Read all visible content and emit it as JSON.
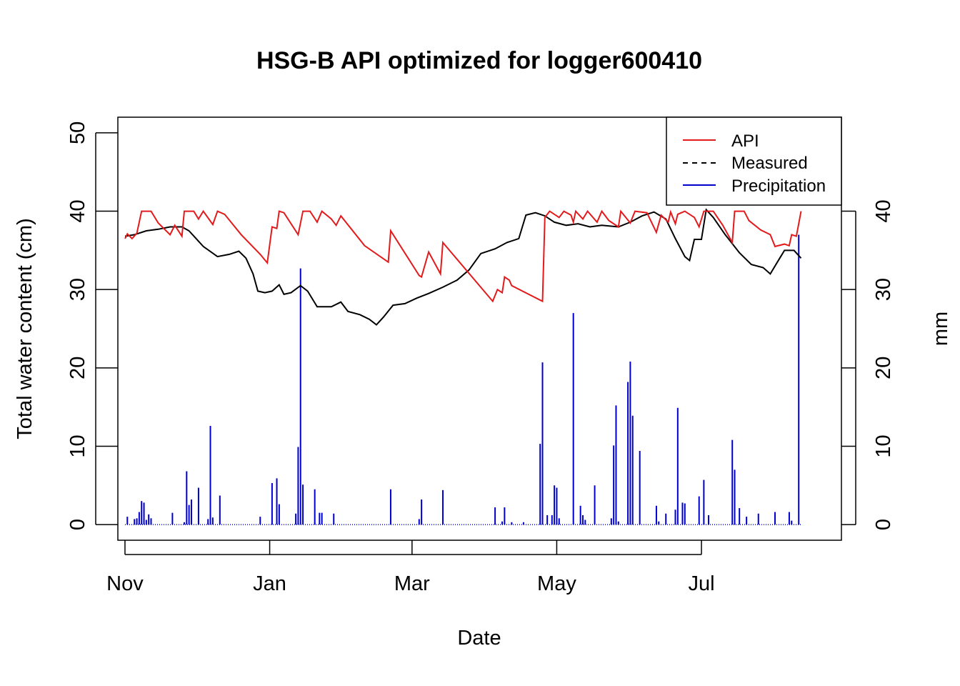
{
  "chart_data": {
    "type": "line",
    "title": "HSG-B API optimized for logger600410",
    "xlabel": "Date",
    "ylabel": "Total water content (cm)",
    "y2label": "mm",
    "x_range": [
      "2015-10-29",
      "2016-08-29"
    ],
    "ylim": [
      -2,
      52
    ],
    "y2lim": [
      -2,
      52
    ],
    "y_ticks": [
      0,
      10,
      20,
      30,
      40,
      50
    ],
    "y2_ticks": [
      0,
      10,
      20,
      30,
      40
    ],
    "x_ticks": [
      {
        "date": "2015-11-01",
        "label": "Nov"
      },
      {
        "date": "2016-01-01",
        "label": "Jan"
      },
      {
        "date": "2016-03-01",
        "label": "Mar"
      },
      {
        "date": "2016-05-01",
        "label": "May"
      },
      {
        "date": "2016-07-01",
        "label": "Jul"
      }
    ],
    "grid": false,
    "legend_position": "top-right",
    "legend": [
      {
        "name": "API",
        "color": "#e31a1c",
        "style": "solid"
      },
      {
        "name": "Measured",
        "color": "#000000",
        "style": "dashed"
      },
      {
        "name": "Precipitation",
        "color": "#0000cc",
        "style": "solid"
      }
    ],
    "series": [
      {
        "name": "API",
        "color": "#e31a1c",
        "points": [
          [
            "2015-11-01",
            36.5
          ],
          [
            "2015-11-02",
            37.1
          ],
          [
            "2015-11-04",
            36.5
          ],
          [
            "2015-11-06",
            37.2
          ],
          [
            "2015-11-08",
            40.0
          ],
          [
            "2015-11-12",
            40.0
          ],
          [
            "2015-11-15",
            38.5
          ],
          [
            "2015-11-20",
            37.0
          ],
          [
            "2015-11-22",
            38.2
          ],
          [
            "2015-11-25",
            36.8
          ],
          [
            "2015-11-26",
            40.0
          ],
          [
            "2015-11-30",
            40.0
          ],
          [
            "2015-12-02",
            39.0
          ],
          [
            "2015-12-04",
            40.0
          ],
          [
            "2015-12-08",
            38.3
          ],
          [
            "2015-12-10",
            40.0
          ],
          [
            "2015-12-13",
            39.6
          ],
          [
            "2015-12-20",
            37.0
          ],
          [
            "2015-12-28",
            34.5
          ],
          [
            "2015-12-31",
            33.4
          ],
          [
            "2016-01-02",
            38.0
          ],
          [
            "2016-01-04",
            37.8
          ],
          [
            "2016-01-05",
            40.0
          ],
          [
            "2016-01-07",
            39.8
          ],
          [
            "2016-01-13",
            37.0
          ],
          [
            "2016-01-15",
            40.0
          ],
          [
            "2016-01-18",
            40.0
          ],
          [
            "2016-01-21",
            38.6
          ],
          [
            "2016-01-23",
            40.0
          ],
          [
            "2016-01-27",
            39.0
          ],
          [
            "2016-01-29",
            38.2
          ],
          [
            "2016-01-31",
            39.4
          ],
          [
            "2016-02-10",
            35.6
          ],
          [
            "2016-02-20",
            33.5
          ],
          [
            "2016-02-21",
            37.5
          ],
          [
            "2016-03-04",
            31.8
          ],
          [
            "2016-03-05",
            31.6
          ],
          [
            "2016-03-08",
            34.8
          ],
          [
            "2016-03-13",
            32.0
          ],
          [
            "2016-03-14",
            36.0
          ],
          [
            "2016-04-04",
            28.5
          ],
          [
            "2016-04-06",
            30.0
          ],
          [
            "2016-04-08",
            29.6
          ],
          [
            "2016-04-09",
            31.6
          ],
          [
            "2016-04-11",
            31.2
          ],
          [
            "2016-04-12",
            30.5
          ],
          [
            "2016-04-25",
            28.5
          ],
          [
            "2016-04-26",
            39.2
          ],
          [
            "2016-04-28",
            40.0
          ],
          [
            "2016-05-02",
            39.2
          ],
          [
            "2016-05-04",
            40.0
          ],
          [
            "2016-05-07",
            39.5
          ],
          [
            "2016-05-08",
            38.6
          ],
          [
            "2016-05-09",
            40.0
          ],
          [
            "2016-05-12",
            39.0
          ],
          [
            "2016-05-14",
            40.0
          ],
          [
            "2016-05-18",
            38.6
          ],
          [
            "2016-05-20",
            40.0
          ],
          [
            "2016-05-23",
            38.8
          ],
          [
            "2016-05-27",
            38.0
          ],
          [
            "2016-05-28",
            40.0
          ],
          [
            "2016-06-01",
            38.5
          ],
          [
            "2016-06-03",
            40.0
          ],
          [
            "2016-06-08",
            39.8
          ],
          [
            "2016-06-12",
            37.3
          ],
          [
            "2016-06-14",
            39.5
          ],
          [
            "2016-06-17",
            38.6
          ],
          [
            "2016-06-18",
            39.9
          ],
          [
            "2016-06-20",
            38.4
          ],
          [
            "2016-06-21",
            39.6
          ],
          [
            "2016-06-24",
            40.0
          ],
          [
            "2016-06-28",
            39.2
          ],
          [
            "2016-06-30",
            38.0
          ],
          [
            "2016-07-02",
            40.0
          ],
          [
            "2016-07-06",
            40.0
          ],
          [
            "2016-07-10",
            38.2
          ],
          [
            "2016-07-14",
            36.0
          ],
          [
            "2016-07-15",
            40.0
          ],
          [
            "2016-07-19",
            40.0
          ],
          [
            "2016-07-21",
            38.8
          ],
          [
            "2016-07-26",
            37.6
          ],
          [
            "2016-07-30",
            37.0
          ],
          [
            "2016-08-01",
            35.5
          ],
          [
            "2016-08-05",
            35.8
          ],
          [
            "2016-08-07",
            35.6
          ],
          [
            "2016-08-08",
            37.0
          ],
          [
            "2016-08-10",
            36.8
          ],
          [
            "2016-08-12",
            40.0
          ]
        ]
      },
      {
        "name": "Measured",
        "color": "#000000",
        "points": [
          [
            "2015-11-01",
            36.8
          ],
          [
            "2015-11-05",
            37.0
          ],
          [
            "2015-11-10",
            37.5
          ],
          [
            "2015-11-15",
            37.7
          ],
          [
            "2015-11-20",
            38.0
          ],
          [
            "2015-11-25",
            38.0
          ],
          [
            "2015-11-28",
            37.5
          ],
          [
            "2015-12-01",
            36.5
          ],
          [
            "2015-12-04",
            35.5
          ],
          [
            "2015-12-10",
            34.2
          ],
          [
            "2015-12-15",
            34.5
          ],
          [
            "2015-12-19",
            34.9
          ],
          [
            "2015-12-22",
            34.0
          ],
          [
            "2015-12-25",
            32.0
          ],
          [
            "2015-12-27",
            29.8
          ],
          [
            "2015-12-30",
            29.6
          ],
          [
            "2016-01-02",
            29.8
          ],
          [
            "2016-01-05",
            30.6
          ],
          [
            "2016-01-07",
            29.4
          ],
          [
            "2016-01-10",
            29.6
          ],
          [
            "2016-01-14",
            30.5
          ],
          [
            "2016-01-17",
            29.8
          ],
          [
            "2016-01-21",
            27.8
          ],
          [
            "2016-01-27",
            27.8
          ],
          [
            "2016-01-31",
            28.4
          ],
          [
            "2016-02-03",
            27.2
          ],
          [
            "2016-02-08",
            26.8
          ],
          [
            "2016-02-12",
            26.2
          ],
          [
            "2016-02-15",
            25.5
          ],
          [
            "2016-02-18",
            26.5
          ],
          [
            "2016-02-22",
            28.0
          ],
          [
            "2016-02-27",
            28.2
          ],
          [
            "2016-03-03",
            28.9
          ],
          [
            "2016-03-08",
            29.5
          ],
          [
            "2016-03-14",
            30.3
          ],
          [
            "2016-03-20",
            31.2
          ],
          [
            "2016-03-25",
            32.5
          ],
          [
            "2016-03-30",
            34.6
          ],
          [
            "2016-04-05",
            35.2
          ],
          [
            "2016-04-10",
            36.0
          ],
          [
            "2016-04-15",
            36.5
          ],
          [
            "2016-04-18",
            39.5
          ],
          [
            "2016-04-22",
            39.8
          ],
          [
            "2016-04-26",
            39.4
          ],
          [
            "2016-04-30",
            38.6
          ],
          [
            "2016-05-05",
            38.2
          ],
          [
            "2016-05-10",
            38.4
          ],
          [
            "2016-05-15",
            38.0
          ],
          [
            "2016-05-20",
            38.2
          ],
          [
            "2016-05-27",
            38.0
          ],
          [
            "2016-06-01",
            38.6
          ],
          [
            "2016-06-06",
            39.4
          ],
          [
            "2016-06-11",
            39.9
          ],
          [
            "2016-06-16",
            39.0
          ],
          [
            "2016-06-20",
            36.5
          ],
          [
            "2016-06-24",
            34.2
          ],
          [
            "2016-06-26",
            33.7
          ],
          [
            "2016-06-28",
            36.4
          ],
          [
            "2016-07-01",
            36.4
          ],
          [
            "2016-07-03",
            40.2
          ],
          [
            "2016-07-06",
            39.2
          ],
          [
            "2016-07-11",
            37.0
          ],
          [
            "2016-07-17",
            34.7
          ],
          [
            "2016-07-22",
            33.2
          ],
          [
            "2016-07-27",
            32.8
          ],
          [
            "2016-07-30",
            32.0
          ],
          [
            "2016-08-02",
            33.5
          ],
          [
            "2016-08-05",
            35.0
          ],
          [
            "2016-08-09",
            35.0
          ],
          [
            "2016-08-12",
            34.0
          ]
        ]
      },
      {
        "name": "Precipitation",
        "color": "#0000cc",
        "axis": "right",
        "type": "bar",
        "points": [
          [
            "2015-11-02",
            1.0
          ],
          [
            "2015-11-05",
            0.7
          ],
          [
            "2015-11-06",
            0.8
          ],
          [
            "2015-11-07",
            1.6
          ],
          [
            "2015-11-08",
            3.0
          ],
          [
            "2015-11-09",
            2.8
          ],
          [
            "2015-11-10",
            0.6
          ],
          [
            "2015-11-11",
            1.3
          ],
          [
            "2015-11-12",
            0.8
          ],
          [
            "2015-11-21",
            1.5
          ],
          [
            "2015-11-26",
            0.3
          ],
          [
            "2015-11-27",
            6.8
          ],
          [
            "2015-11-28",
            2.5
          ],
          [
            "2015-11-29",
            3.2
          ],
          [
            "2015-12-02",
            4.7
          ],
          [
            "2015-12-06",
            0.7
          ],
          [
            "2015-12-07",
            12.6
          ],
          [
            "2015-12-08",
            0.9
          ],
          [
            "2015-12-11",
            3.7
          ],
          [
            "2015-12-28",
            1.0
          ],
          [
            "2016-01-02",
            5.3
          ],
          [
            "2016-01-04",
            5.9
          ],
          [
            "2016-01-05",
            2.6
          ],
          [
            "2016-01-12",
            1.4
          ],
          [
            "2016-01-13",
            9.9
          ],
          [
            "2016-01-14",
            32.7
          ],
          [
            "2016-01-15",
            5.1
          ],
          [
            "2016-01-20",
            4.5
          ],
          [
            "2016-01-22",
            1.5
          ],
          [
            "2016-01-23",
            1.5
          ],
          [
            "2016-01-28",
            1.4
          ],
          [
            "2016-02-21",
            4.5
          ],
          [
            "2016-03-04",
            0.7
          ],
          [
            "2016-03-05",
            3.2
          ],
          [
            "2016-03-14",
            4.4
          ],
          [
            "2016-04-05",
            2.2
          ],
          [
            "2016-04-08",
            0.4
          ],
          [
            "2016-04-09",
            2.2
          ],
          [
            "2016-04-12",
            0.3
          ],
          [
            "2016-04-17",
            0.3
          ],
          [
            "2016-04-24",
            10.3
          ],
          [
            "2016-04-25",
            20.7
          ],
          [
            "2016-04-27",
            1.2
          ],
          [
            "2016-04-29",
            1.2
          ],
          [
            "2016-04-30",
            5.0
          ],
          [
            "2016-05-01",
            4.7
          ],
          [
            "2016-05-02",
            0.8
          ],
          [
            "2016-05-08",
            27.0
          ],
          [
            "2016-05-11",
            2.4
          ],
          [
            "2016-05-12",
            1.2
          ],
          [
            "2016-05-13",
            0.6
          ],
          [
            "2016-05-17",
            5.0
          ],
          [
            "2016-05-24",
            0.8
          ],
          [
            "2016-05-25",
            10.1
          ],
          [
            "2016-05-26",
            15.2
          ],
          [
            "2016-05-27",
            0.4
          ],
          [
            "2016-05-31",
            18.2
          ],
          [
            "2016-06-01",
            20.8
          ],
          [
            "2016-06-02",
            13.9
          ],
          [
            "2016-06-05",
            9.4
          ],
          [
            "2016-06-12",
            2.4
          ],
          [
            "2016-06-13",
            0.4
          ],
          [
            "2016-06-16",
            1.4
          ],
          [
            "2016-06-20",
            1.9
          ],
          [
            "2016-06-21",
            14.9
          ],
          [
            "2016-06-23",
            2.8
          ],
          [
            "2016-06-24",
            2.7
          ],
          [
            "2016-06-30",
            3.6
          ],
          [
            "2016-07-02",
            5.7
          ],
          [
            "2016-07-04",
            1.2
          ],
          [
            "2016-07-14",
            10.8
          ],
          [
            "2016-07-15",
            7.0
          ],
          [
            "2016-07-17",
            2.1
          ],
          [
            "2016-07-20",
            1.0
          ],
          [
            "2016-07-25",
            1.4
          ],
          [
            "2016-08-01",
            1.6
          ],
          [
            "2016-08-07",
            1.6
          ],
          [
            "2016-08-08",
            0.5
          ],
          [
            "2016-08-11",
            37.0
          ]
        ]
      }
    ]
  }
}
